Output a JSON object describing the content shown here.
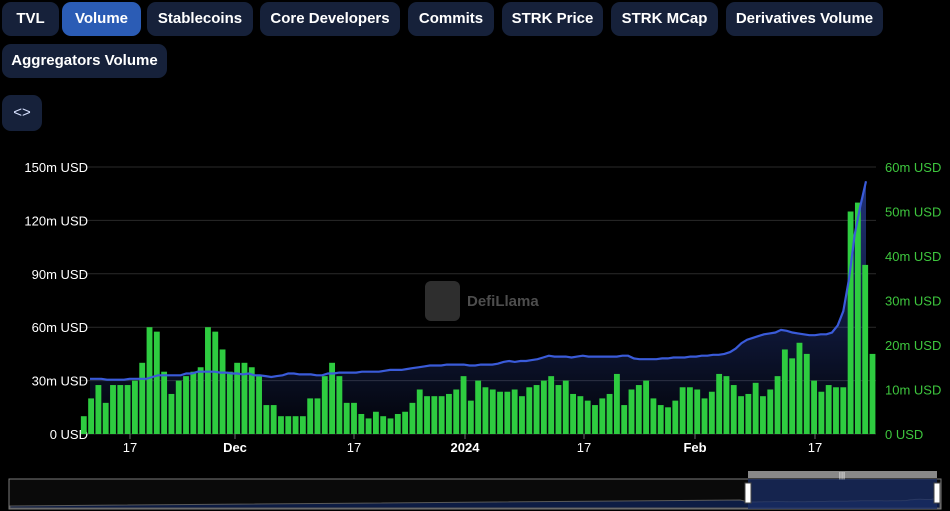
{
  "tabs": [
    {
      "label": "TVL",
      "active": false
    },
    {
      "label": "Volume",
      "active": true
    },
    {
      "label": "Stablecoins",
      "active": false
    },
    {
      "label": "Core Developers",
      "active": false
    },
    {
      "label": "Commits",
      "active": false
    },
    {
      "label": "STRK Price",
      "active": false
    },
    {
      "label": "STRK MCap",
      "active": false
    },
    {
      "label": "Derivatives Volume",
      "active": false
    },
    {
      "label": "Aggregators Volume",
      "active": false
    }
  ],
  "embed_button": {
    "label": "<>",
    "icon": "code-embed-icon"
  },
  "watermark": {
    "text": "DefiLlama",
    "icon": "llama-logo-icon"
  },
  "colors": {
    "tvl_line": "#3a5bd9",
    "volume_bar": "#2ecc40",
    "left_axis_text": "#ffffff",
    "right_axis_text": "#3ec63e",
    "active_tab": "#2b5cb5",
    "tab": "#16213a"
  },
  "chart_data": {
    "type": "bar",
    "title": "",
    "x_tick_labels": [
      "17",
      "Dec",
      "17",
      "2024",
      "17",
      "Feb",
      "17"
    ],
    "left_axis": {
      "ylim": [
        0,
        150
      ],
      "unit": "m USD",
      "ticks": [
        "0 USD",
        "30m USD",
        "60m USD",
        "90m USD",
        "120m USD",
        "150m USD"
      ]
    },
    "right_axis": {
      "ylim": [
        0,
        60
      ],
      "unit": "m USD",
      "ticks": [
        "0 USD",
        "10m USD",
        "20m USD",
        "30m USD",
        "40m USD",
        "50m USD",
        "60m USD"
      ]
    },
    "grid": true,
    "series": [
      {
        "type": "line",
        "axis": "left",
        "values": [
          31,
          31,
          31,
          30.5,
          30.5,
          30.5,
          30.5,
          31,
          31,
          31,
          31,
          32,
          33,
          33,
          33,
          33,
          33,
          34,
          34,
          35,
          35,
          35,
          35,
          34.5,
          34.5,
          34,
          34,
          33.5,
          34,
          33,
          33,
          32.5,
          32,
          32.5,
          33,
          34,
          34,
          33.5,
          33.5,
          33.5,
          33,
          33,
          34,
          34,
          34.5,
          34.5,
          34.5,
          34.5,
          35,
          35,
          35,
          35,
          35.5,
          36,
          36,
          36,
          36.5,
          37,
          37.5,
          38,
          38.5,
          38.5,
          38.5,
          39,
          39,
          39,
          39,
          38.5,
          38.5,
          39,
          39,
          39,
          39.5,
          40.5,
          41,
          40.5,
          41,
          41,
          41.5,
          42,
          43,
          44,
          43.5,
          43.5,
          43.5,
          43,
          43.5,
          44,
          43.5,
          43.5,
          43.5,
          43.5,
          43.5,
          43.5,
          44,
          44,
          42.5,
          42,
          42,
          42,
          42,
          42.5,
          42.5,
          43,
          43,
          43,
          43.5,
          43.5,
          44,
          44,
          44.5,
          44.5,
          45,
          46,
          48,
          51,
          53,
          54,
          55,
          56,
          56.5,
          57,
          58.5,
          58,
          57,
          56.5,
          56,
          55.5,
          55.5,
          56,
          56,
          57,
          61,
          69,
          87,
          112,
          128,
          142
        ]
      },
      {
        "type": "bar",
        "axis": "right",
        "values": [
          4,
          8,
          11,
          7,
          11,
          11,
          11,
          12,
          16,
          24,
          23,
          14,
          9,
          12,
          13,
          14,
          15,
          24,
          23,
          19,
          14,
          16,
          16,
          15,
          13,
          6.5,
          6.5,
          4,
          4,
          4,
          4,
          8,
          8,
          13,
          16,
          13,
          7,
          7,
          4.5,
          3.5,
          5,
          4,
          3.5,
          4.5,
          5,
          7,
          10,
          8.5,
          8.5,
          8.5,
          9,
          10,
          13,
          7.5,
          12,
          10.5,
          10,
          9.5,
          9.5,
          10,
          8.5,
          10.5,
          11,
          12,
          13,
          11,
          12,
          9,
          8.5,
          7.5,
          6.5,
          8,
          9,
          13.5,
          6.5,
          10,
          11,
          12,
          8,
          6.5,
          6,
          7.5,
          10.5,
          10.5,
          10,
          8,
          9.5,
          13.5,
          13,
          11,
          8.5,
          9,
          11.5,
          8.5,
          10,
          13,
          19,
          17,
          20.5,
          18,
          12,
          9.5,
          11,
          10.5,
          10.5,
          50,
          52,
          38,
          18
        ]
      }
    ]
  }
}
